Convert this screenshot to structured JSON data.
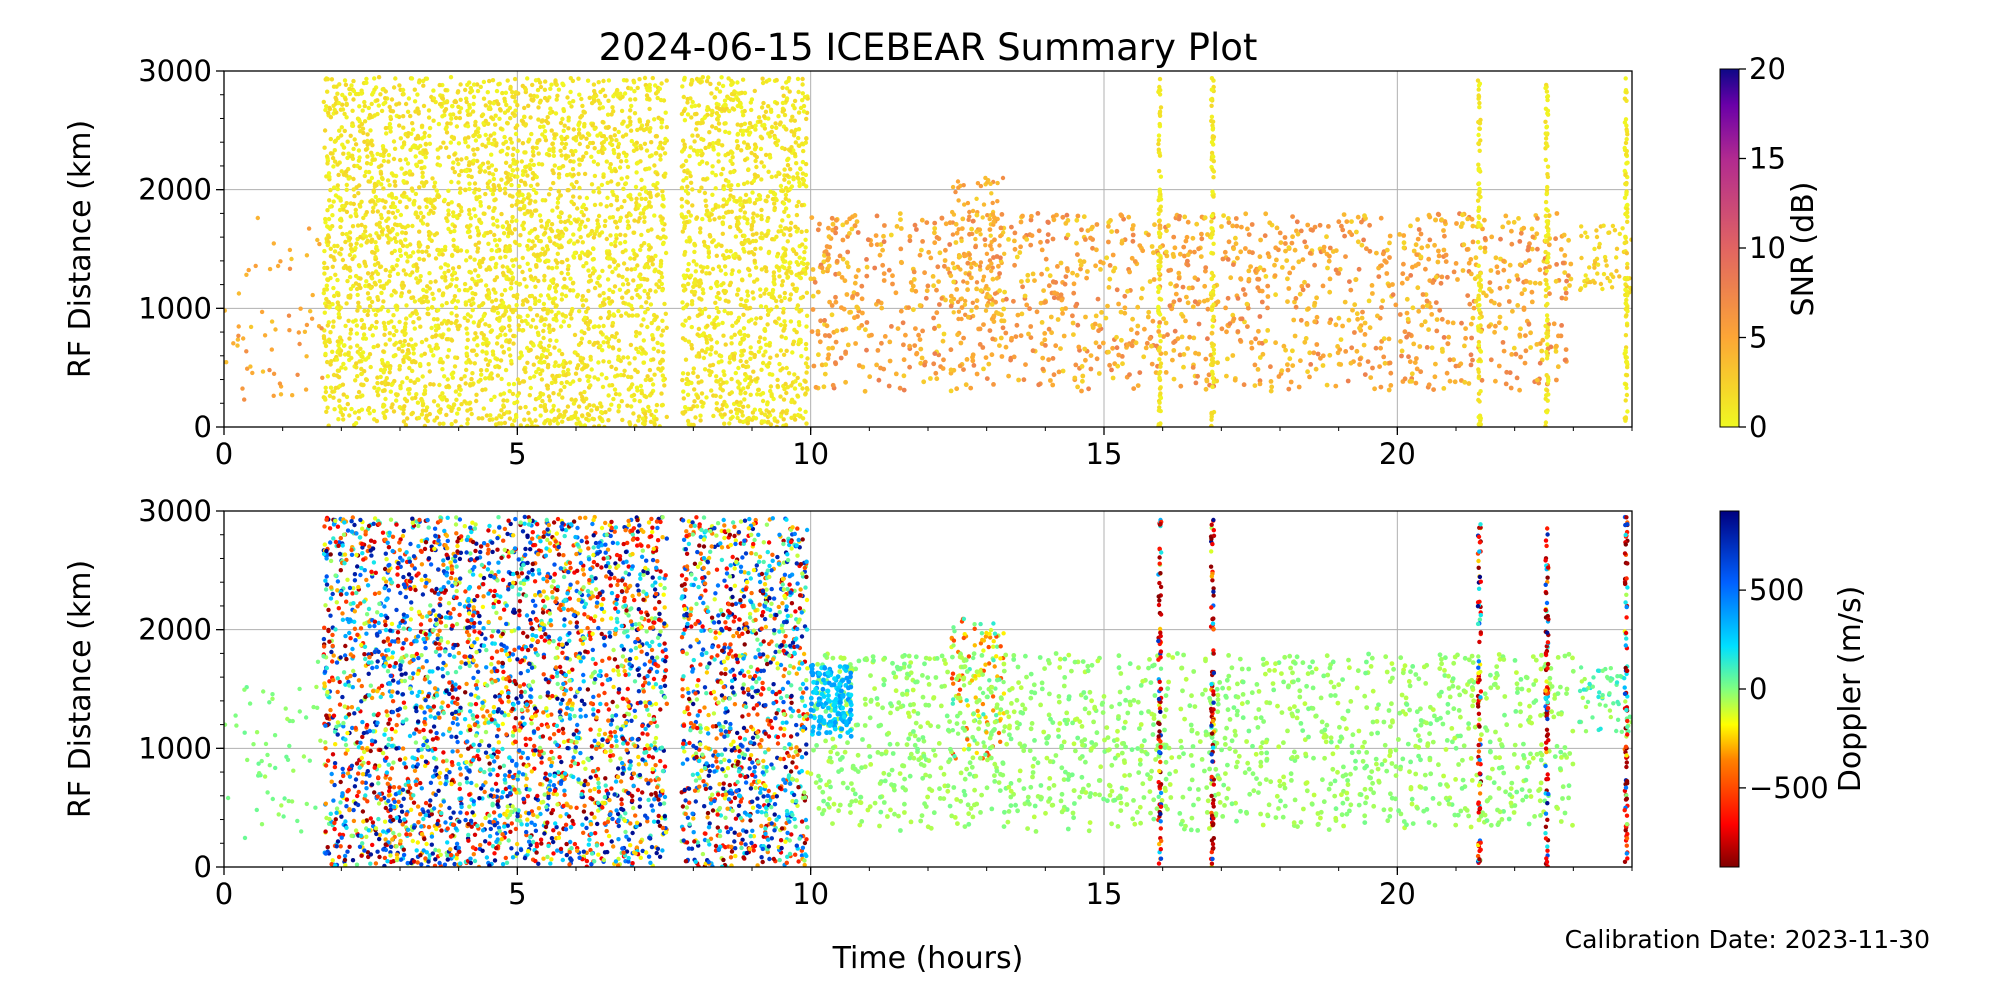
{
  "figure": {
    "title": "2024-06-15 ICEBEAR Summary Plot",
    "xlabel": "Time (hours)",
    "footer": "Calibration Date: 2023-11-30"
  },
  "chart_data": [
    {
      "type": "scatter",
      "ylabel": "RF Distance (km)",
      "xlim": [
        0,
        24
      ],
      "ylim": [
        0,
        3000
      ],
      "x_ticks": [
        "0",
        "5",
        "10",
        "15",
        "20"
      ],
      "y_ticks": [
        "0",
        "1000",
        "2000",
        "3000"
      ],
      "grid": true,
      "color_variable": "SNR (dB)",
      "colorbar": {
        "label": "SNR (dB)",
        "range": [
          0,
          20
        ],
        "ticks": [
          "0",
          "5",
          "10",
          "15",
          "20"
        ],
        "colormap": "plasma_r"
      },
      "dense_regions": [
        {
          "x": [
            1.7,
            4.05
          ],
          "y": [
            0,
            2950
          ],
          "value": "~1 dB"
        },
        {
          "x": [
            4.1,
            7.55
          ],
          "y": [
            0,
            2950
          ],
          "value": "~1 dB"
        },
        {
          "x": [
            7.8,
            9.95
          ],
          "y": [
            0,
            2950
          ],
          "value": "~1 dB"
        },
        {
          "x": [
            12.4,
            13.3
          ],
          "y": [
            900,
            2100
          ],
          "value": "~3-6 dB"
        },
        {
          "x": [
            23.1,
            24
          ],
          "y": [
            1100,
            1700
          ],
          "value": "~2 dB"
        }
      ],
      "vertical_streaks": [
        15.95,
        16.85,
        21.4,
        22.55,
        23.9
      ],
      "scattered_band": {
        "x": [
          10,
          23
        ],
        "y": [
          300,
          1800
        ],
        "value": "~2-8 dB"
      }
    },
    {
      "type": "scatter",
      "ylabel": "RF Distance (km)",
      "xlim": [
        0,
        24
      ],
      "ylim": [
        0,
        3000
      ],
      "x_ticks": [
        "0",
        "5",
        "10",
        "15",
        "20"
      ],
      "y_ticks": [
        "0",
        "1000",
        "2000",
        "3000"
      ],
      "grid": true,
      "color_variable": "Doppler (m/s)",
      "colorbar": {
        "label": "Doppler (m/s)",
        "range": [
          -900,
          900
        ],
        "ticks": [
          "−500",
          "0",
          "500"
        ],
        "tick_values": [
          -500,
          0,
          500
        ],
        "colormap": "jet_r"
      },
      "dense_regions": [
        {
          "x": [
            1.7,
            4.05
          ],
          "y": [
            0,
            2950
          ],
          "value": "-900 to 900 (mixed)"
        },
        {
          "x": [
            4.1,
            7.55
          ],
          "y": [
            0,
            2950
          ],
          "value": "-900 to 900 (mixed)"
        },
        {
          "x": [
            7.8,
            9.95
          ],
          "y": [
            0,
            2950
          ],
          "value": "-900 to 900 (mixed)"
        },
        {
          "x": [
            12.4,
            13.3
          ],
          "y": [
            900,
            2100
          ],
          "value": "-500 to 100"
        },
        {
          "x": [
            23.1,
            24
          ],
          "y": [
            1100,
            1700
          ],
          "value": "~0 to 100"
        }
      ],
      "cyan_cluster": {
        "x": [
          10,
          10.7
        ],
        "y": [
          1100,
          1700
        ],
        "value": "~300 m/s"
      },
      "vertical_streaks": [
        15.95,
        16.85,
        21.4,
        22.55,
        23.9
      ],
      "scattered_band": {
        "x": [
          10,
          23
        ],
        "y": [
          300,
          1800
        ],
        "value": "~-50 m/s"
      }
    }
  ]
}
